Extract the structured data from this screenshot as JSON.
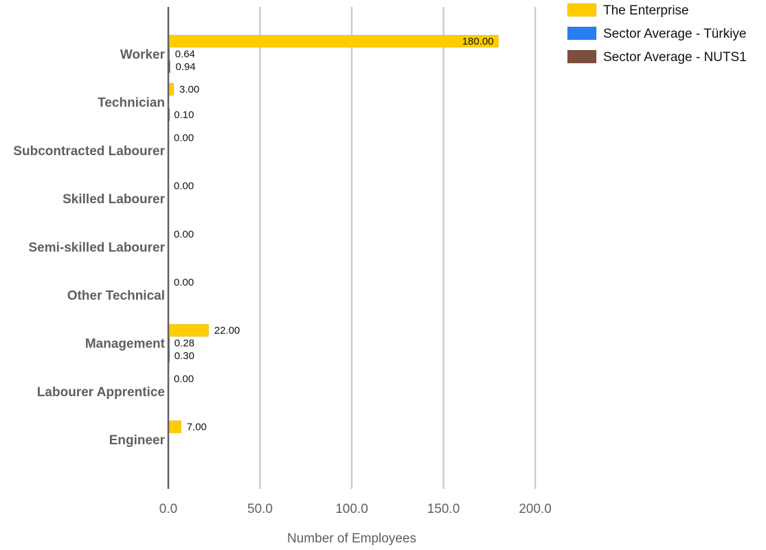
{
  "chart_data": {
    "type": "bar",
    "orientation": "horizontal",
    "categories": [
      "Worker",
      "Technician",
      "Subcontracted Labourer",
      "Skilled Labourer",
      "Semi-skilled Labourer",
      "Other Technical",
      "Management",
      "Labourer Apprentice",
      "Engineer"
    ],
    "series": [
      {
        "name": "The Enterprise",
        "color": "#ffcc00",
        "values": [
          180,
          3,
          0,
          0,
          0,
          0,
          22,
          0,
          7
        ],
        "labels": [
          "180.00",
          "3.00",
          "0.00",
          "0.00",
          "0.00",
          "0.00",
          "22.00",
          "0.00",
          "7.00"
        ]
      },
      {
        "name": "Sector Average - Türkiye",
        "color": "#2a7ff0",
        "values": [
          0.64,
          null,
          null,
          null,
          null,
          null,
          0.28,
          null,
          null
        ],
        "labels": [
          "0.64",
          "",
          "",
          "",
          "",
          "",
          "0.28",
          "",
          ""
        ]
      },
      {
        "name": "Sector Average - NUTS1",
        "color": "#7b4e3e",
        "values": [
          0.94,
          0.1,
          null,
          null,
          null,
          null,
          0.3,
          null,
          null
        ],
        "labels": [
          "0.94",
          "0.10",
          "",
          "",
          "",
          "",
          "0.30",
          "",
          ""
        ]
      }
    ],
    "title": "",
    "xlabel": "Number of Employees",
    "ylabel": "",
    "xlim": [
      0,
      200
    ],
    "xticks": [
      "0.0",
      "50.0",
      "100.0",
      "150.0",
      "200.0"
    ],
    "grid": "vertical",
    "legend": "top-right"
  }
}
